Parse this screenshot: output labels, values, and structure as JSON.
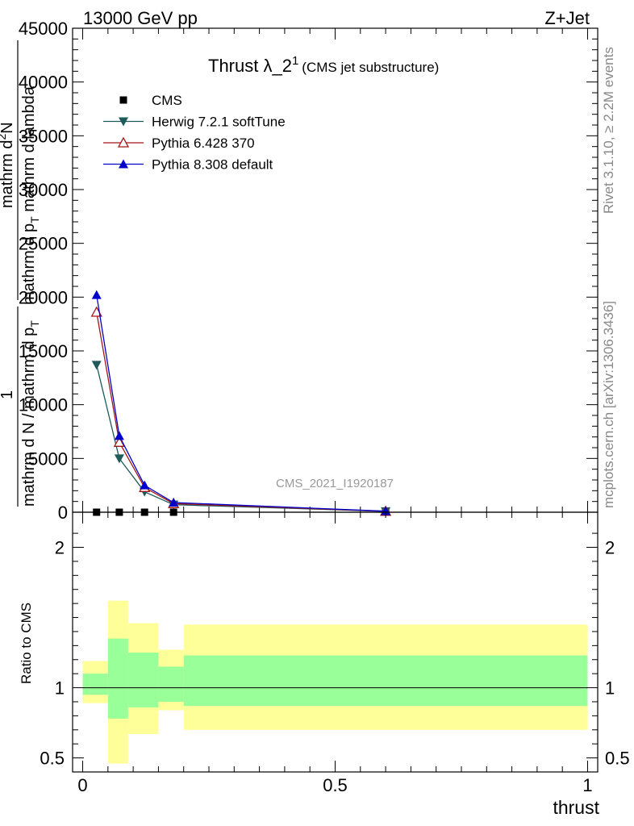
{
  "header": {
    "left": "13000 GeV pp",
    "right": "Z+Jet"
  },
  "side_labels": {
    "rivet": "Rivet 3.1.10, ≥ 2.2M events",
    "mcplots": "mcplots.cern.ch [arXiv:1306.3436]"
  },
  "watermark": "CMS_2021_I1920187",
  "chart_data": [
    {
      "type": "line",
      "title": "Thrust λ_2",
      "title_sup": "1",
      "title_extra": "(CMS jet substructure)",
      "xlabel": "thrust",
      "ylabel_line1": "mathrm d",
      "ylabel_sup": "2",
      "ylabel_line1_rest": "N",
      "ylabel_line2": "mathrm d p",
      "ylabel_line2_sub": "T",
      "ylabel_line2_rest": " mathrm d lambda",
      "ylabel_line3": "1",
      "ylabel_line4": "mathrm d N / mathrm d p",
      "ylabel_line4_sub": "T",
      "xlim": [
        -0.02,
        1.02
      ],
      "ylim": [
        0,
        45000
      ],
      "y_ticks": [
        0,
        5000,
        10000,
        15000,
        20000,
        25000,
        30000,
        35000,
        40000,
        45000
      ],
      "y_tick_labels": [
        "0",
        "5000",
        "10000",
        "15000",
        "20000",
        "25000",
        "30000",
        "35000",
        "40000",
        "45000"
      ],
      "legend_placement": "top-left",
      "series": [
        {
          "name": "CMS",
          "color": "#000000",
          "marker": "square",
          "x": [
            0.0275,
            0.0725,
            0.1225,
            0.18,
            0.6
          ],
          "y": [
            0,
            0,
            0,
            0,
            0
          ]
        },
        {
          "name": "Herwig 7.2.1 softTune",
          "color": "#1e5a5a",
          "marker": "triangle-down",
          "x": [
            0.0275,
            0.0725,
            0.1225,
            0.18,
            0.6
          ],
          "y": [
            13700,
            5000,
            1900,
            700,
            80
          ]
        },
        {
          "name": "Pythia 6.428 370",
          "color": "#a31515",
          "marker": "triangle-up-open",
          "x": [
            0.0275,
            0.0725,
            0.1225,
            0.18,
            0.6
          ],
          "y": [
            18600,
            6500,
            2300,
            800,
            90
          ]
        },
        {
          "name": "Pythia 8.308 default",
          "color": "#0000cc",
          "marker": "triangle-up",
          "x": [
            0.0275,
            0.0725,
            0.1225,
            0.18,
            0.6
          ],
          "y": [
            20200,
            7100,
            2500,
            900,
            100
          ]
        }
      ]
    },
    {
      "type": "area",
      "ylabel": "Ratio to CMS",
      "xlabel": "thrust",
      "xlim": [
        -0.02,
        1.02
      ],
      "ylim": [
        0.4,
        2.25
      ],
      "x_ticks": [
        0,
        0.5,
        1
      ],
      "x_tick_labels": [
        "0",
        "0.5",
        "1"
      ],
      "y_ticks": [
        0.5,
        1,
        2
      ],
      "y_tick_labels": [
        "0.5",
        "1",
        "2"
      ],
      "reference_line": 1,
      "bins": [
        {
          "x_low": 0.0,
          "x_high": 0.05,
          "inner": [
            0.95,
            1.1
          ],
          "outer": [
            0.89,
            1.19
          ]
        },
        {
          "x_low": 0.05,
          "x_high": 0.09,
          "inner": [
            0.78,
            1.35
          ],
          "outer": [
            0.46,
            1.62
          ]
        },
        {
          "x_low": 0.09,
          "x_high": 0.15,
          "inner": [
            0.86,
            1.25
          ],
          "outer": [
            0.67,
            1.46
          ]
        },
        {
          "x_low": 0.15,
          "x_high": 0.2,
          "inner": [
            0.9,
            1.15
          ],
          "outer": [
            0.84,
            1.27
          ]
        },
        {
          "x_low": 0.2,
          "x_high": 1.0,
          "inner": [
            0.87,
            1.23
          ],
          "outer": [
            0.7,
            1.45
          ]
        }
      ],
      "colors": {
        "inner": "#99ff99",
        "outer": "#ffff99"
      }
    }
  ]
}
